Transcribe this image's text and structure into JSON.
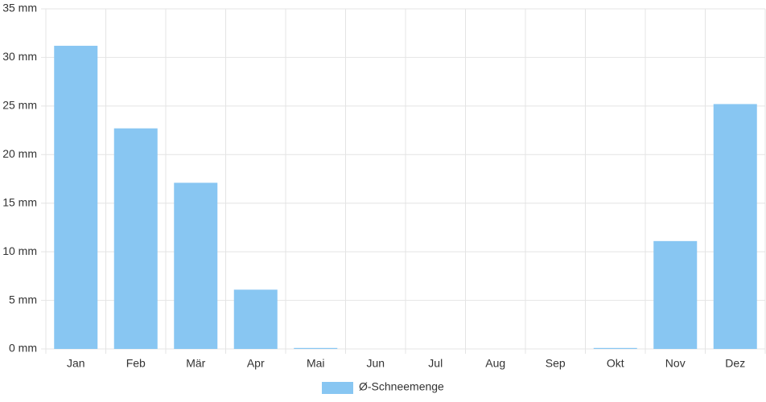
{
  "chart_data": {
    "type": "bar",
    "categories": [
      "Jan",
      "Feb",
      "Mär",
      "Apr",
      "Mai",
      "Jun",
      "Jul",
      "Aug",
      "Sep",
      "Okt",
      "Nov",
      "Dez"
    ],
    "series": [
      {
        "name": "Ø-Schneemenge",
        "color": "#88c6f2",
        "values": [
          31.2,
          22.7,
          17.1,
          6.1,
          0.1,
          0,
          0,
          0,
          0,
          0.1,
          11.1,
          25.2
        ]
      }
    ],
    "ylim": [
      0,
      35
    ],
    "yticks": [
      {
        "value": 0,
        "label": "0 mm"
      },
      {
        "value": 5,
        "label": "5 mm"
      },
      {
        "value": 10,
        "label": "10 mm"
      },
      {
        "value": 15,
        "label": "15 mm"
      },
      {
        "value": 20,
        "label": "20 mm"
      },
      {
        "value": 25,
        "label": "25 mm"
      },
      {
        "value": 30,
        "label": "30 mm"
      },
      {
        "value": 35,
        "label": "35 mm"
      }
    ],
    "grid": true,
    "legend": "bottom"
  }
}
